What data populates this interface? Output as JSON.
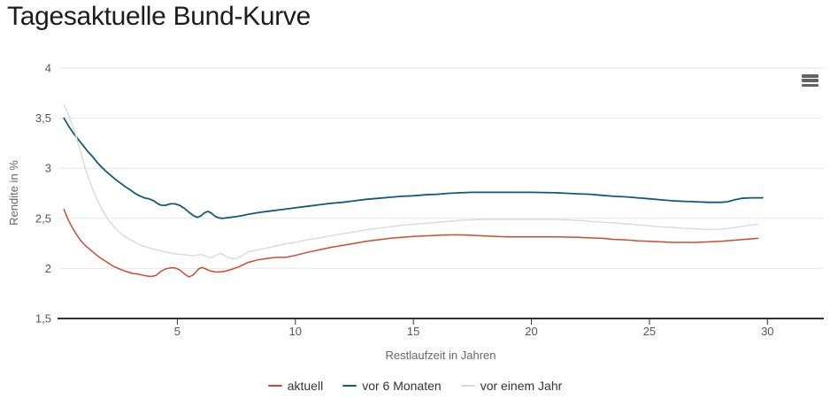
{
  "title": "Tagesaktuelle Bund-Kurve",
  "toolbar": {
    "menu_icon": "hamburger-menu"
  },
  "chart_data": {
    "type": "line",
    "title": "Tagesaktuelle Bund-Kurve",
    "xlabel": "Restlaufzeit in Jahren",
    "ylabel": "Rendite in %",
    "xlim": [
      0,
      32.35
    ],
    "ylim": [
      1.5,
      4
    ],
    "grid": "horizontal",
    "legend_position": "bottom",
    "colors": {
      "grid": "#e6e6e6",
      "axis_line": "#333333",
      "tick_text": "#555555",
      "axis_title_text": "#666666"
    },
    "xticks": [
      {
        "value": 5,
        "label": "5"
      },
      {
        "value": 10,
        "label": "10"
      },
      {
        "value": 15,
        "label": "15"
      },
      {
        "value": 20,
        "label": "20"
      },
      {
        "value": 25,
        "label": "25"
      },
      {
        "value": 30,
        "label": "30"
      }
    ],
    "yticks": [
      {
        "value": 4,
        "label": "4"
      },
      {
        "value": 3.5,
        "label": "3,5"
      },
      {
        "value": 3,
        "label": "3"
      },
      {
        "value": 2.5,
        "label": "2,5"
      },
      {
        "value": 2,
        "label": "2"
      },
      {
        "value": 1.5,
        "label": "1,5"
      }
    ],
    "series": [
      {
        "name": "aktuell",
        "color": "#cb4b34",
        "width": 1.5,
        "points": [
          [
            0.2,
            2.59
          ],
          [
            0.35,
            2.5
          ],
          [
            0.5,
            2.43
          ],
          [
            0.7,
            2.35
          ],
          [
            0.9,
            2.28
          ],
          [
            1.1,
            2.23
          ],
          [
            1.3,
            2.19
          ],
          [
            1.5,
            2.15
          ],
          [
            1.7,
            2.11
          ],
          [
            1.9,
            2.08
          ],
          [
            2.1,
            2.05
          ],
          [
            2.3,
            2.02
          ],
          [
            2.5,
            2.0
          ],
          [
            2.7,
            1.98
          ],
          [
            2.9,
            1.965
          ],
          [
            3.1,
            1.95
          ],
          [
            3.3,
            1.945
          ],
          [
            3.5,
            1.935
          ],
          [
            3.7,
            1.925
          ],
          [
            3.9,
            1.92
          ],
          [
            4.1,
            1.93
          ],
          [
            4.3,
            1.97
          ],
          [
            4.5,
            1.995
          ],
          [
            4.7,
            2.005
          ],
          [
            4.9,
            2.005
          ],
          [
            5.1,
            1.985
          ],
          [
            5.3,
            1.945
          ],
          [
            5.5,
            1.915
          ],
          [
            5.7,
            1.94
          ],
          [
            5.9,
            1.995
          ],
          [
            6.05,
            2.01
          ],
          [
            6.2,
            1.995
          ],
          [
            6.4,
            1.975
          ],
          [
            6.6,
            1.965
          ],
          [
            6.8,
            1.965
          ],
          [
            7.0,
            1.97
          ],
          [
            7.3,
            1.99
          ],
          [
            7.6,
            2.015
          ],
          [
            8.0,
            2.06
          ],
          [
            8.4,
            2.085
          ],
          [
            8.8,
            2.1
          ],
          [
            9.2,
            2.11
          ],
          [
            9.6,
            2.11
          ],
          [
            10,
            2.13
          ],
          [
            10.5,
            2.16
          ],
          [
            11,
            2.185
          ],
          [
            11.5,
            2.21
          ],
          [
            12,
            2.23
          ],
          [
            12.5,
            2.25
          ],
          [
            13,
            2.27
          ],
          [
            13.5,
            2.285
          ],
          [
            14,
            2.3
          ],
          [
            14.5,
            2.31
          ],
          [
            15,
            2.32
          ],
          [
            15.5,
            2.325
          ],
          [
            16,
            2.33
          ],
          [
            16.5,
            2.335
          ],
          [
            17,
            2.335
          ],
          [
            17.5,
            2.33
          ],
          [
            18,
            2.325
          ],
          [
            18.5,
            2.32
          ],
          [
            19,
            2.315
          ],
          [
            20,
            2.315
          ],
          [
            21,
            2.315
          ],
          [
            22,
            2.31
          ],
          [
            22.5,
            2.305
          ],
          [
            23,
            2.3
          ],
          [
            23.5,
            2.29
          ],
          [
            24,
            2.285
          ],
          [
            24.5,
            2.275
          ],
          [
            25,
            2.27
          ],
          [
            25.5,
            2.265
          ],
          [
            26,
            2.26
          ],
          [
            26.5,
            2.26
          ],
          [
            27,
            2.26
          ],
          [
            27.5,
            2.265
          ],
          [
            28,
            2.27
          ],
          [
            28.5,
            2.28
          ],
          [
            29,
            2.29
          ],
          [
            29.3,
            2.295
          ],
          [
            29.6,
            2.3
          ]
        ]
      },
      {
        "name": "vor 6 Monaten",
        "color": "#14597c",
        "width": 1.8,
        "points": [
          [
            0.2,
            3.5
          ],
          [
            0.4,
            3.42
          ],
          [
            0.6,
            3.35
          ],
          [
            0.8,
            3.29
          ],
          [
            1.0,
            3.23
          ],
          [
            1.2,
            3.17
          ],
          [
            1.4,
            3.12
          ],
          [
            1.6,
            3.06
          ],
          [
            1.8,
            3.01
          ],
          [
            2.0,
            2.965
          ],
          [
            2.2,
            2.925
          ],
          [
            2.4,
            2.885
          ],
          [
            2.6,
            2.85
          ],
          [
            2.8,
            2.815
          ],
          [
            3.0,
            2.785
          ],
          [
            3.2,
            2.75
          ],
          [
            3.4,
            2.725
          ],
          [
            3.6,
            2.705
          ],
          [
            3.8,
            2.695
          ],
          [
            4.0,
            2.675
          ],
          [
            4.15,
            2.65
          ],
          [
            4.3,
            2.632
          ],
          [
            4.5,
            2.63
          ],
          [
            4.7,
            2.645
          ],
          [
            4.9,
            2.645
          ],
          [
            5.1,
            2.63
          ],
          [
            5.3,
            2.6
          ],
          [
            5.5,
            2.56
          ],
          [
            5.7,
            2.525
          ],
          [
            5.85,
            2.51
          ],
          [
            6.0,
            2.525
          ],
          [
            6.15,
            2.555
          ],
          [
            6.3,
            2.57
          ],
          [
            6.45,
            2.55
          ],
          [
            6.6,
            2.52
          ],
          [
            6.75,
            2.505
          ],
          [
            6.9,
            2.5
          ],
          [
            7.1,
            2.505
          ],
          [
            7.4,
            2.515
          ],
          [
            7.7,
            2.525
          ],
          [
            8.0,
            2.54
          ],
          [
            8.5,
            2.56
          ],
          [
            9.0,
            2.575
          ],
          [
            9.5,
            2.59
          ],
          [
            10,
            2.605
          ],
          [
            10.5,
            2.62
          ],
          [
            11,
            2.635
          ],
          [
            11.5,
            2.65
          ],
          [
            12,
            2.66
          ],
          [
            12.5,
            2.675
          ],
          [
            13,
            2.69
          ],
          [
            13.5,
            2.7
          ],
          [
            14,
            2.71
          ],
          [
            14.5,
            2.72
          ],
          [
            15,
            2.725
          ],
          [
            15.5,
            2.735
          ],
          [
            16,
            2.74
          ],
          [
            16.5,
            2.75
          ],
          [
            17,
            2.755
          ],
          [
            17.5,
            2.76
          ],
          [
            18,
            2.76
          ],
          [
            19,
            2.76
          ],
          [
            20,
            2.76
          ],
          [
            21,
            2.755
          ],
          [
            21.5,
            2.75
          ],
          [
            22,
            2.745
          ],
          [
            22.5,
            2.74
          ],
          [
            23,
            2.73
          ],
          [
            23.5,
            2.72
          ],
          [
            24,
            2.715
          ],
          [
            24.5,
            2.705
          ],
          [
            25,
            2.695
          ],
          [
            25.5,
            2.685
          ],
          [
            26,
            2.675
          ],
          [
            26.5,
            2.67
          ],
          [
            27,
            2.665
          ],
          [
            27.5,
            2.66
          ],
          [
            28,
            2.66
          ],
          [
            28.3,
            2.665
          ],
          [
            28.6,
            2.685
          ],
          [
            28.9,
            2.7
          ],
          [
            29.3,
            2.705
          ],
          [
            29.8,
            2.705
          ]
        ]
      },
      {
        "name": "vor einem Jahr",
        "color": "#d7dadc",
        "width": 1.4,
        "points": [
          [
            0.2,
            3.63
          ],
          [
            0.35,
            3.56
          ],
          [
            0.5,
            3.47
          ],
          [
            0.65,
            3.37
          ],
          [
            0.8,
            3.25
          ],
          [
            0.95,
            3.13
          ],
          [
            1.1,
            3.0
          ],
          [
            1.3,
            2.86
          ],
          [
            1.5,
            2.74
          ],
          [
            1.7,
            2.64
          ],
          [
            1.9,
            2.55
          ],
          [
            2.1,
            2.48
          ],
          [
            2.3,
            2.42
          ],
          [
            2.5,
            2.37
          ],
          [
            2.7,
            2.33
          ],
          [
            2.9,
            2.3
          ],
          [
            3.1,
            2.275
          ],
          [
            3.3,
            2.25
          ],
          [
            3.6,
            2.22
          ],
          [
            3.9,
            2.2
          ],
          [
            4.2,
            2.18
          ],
          [
            4.5,
            2.165
          ],
          [
            4.8,
            2.15
          ],
          [
            5.1,
            2.14
          ],
          [
            5.4,
            2.135
          ],
          [
            5.7,
            2.125
          ],
          [
            6.0,
            2.14
          ],
          [
            6.2,
            2.125
          ],
          [
            6.4,
            2.105
          ],
          [
            6.6,
            2.125
          ],
          [
            6.8,
            2.15
          ],
          [
            7.0,
            2.13
          ],
          [
            7.2,
            2.105
          ],
          [
            7.45,
            2.095
          ],
          [
            7.7,
            2.12
          ],
          [
            8.0,
            2.165
          ],
          [
            8.5,
            2.19
          ],
          [
            9.0,
            2.215
          ],
          [
            9.5,
            2.24
          ],
          [
            10,
            2.26
          ],
          [
            10.5,
            2.285
          ],
          [
            11,
            2.305
          ],
          [
            11.5,
            2.325
          ],
          [
            12,
            2.345
          ],
          [
            12.5,
            2.365
          ],
          [
            13,
            2.385
          ],
          [
            13.5,
            2.4
          ],
          [
            14,
            2.415
          ],
          [
            14.5,
            2.43
          ],
          [
            15,
            2.44
          ],
          [
            15.5,
            2.45
          ],
          [
            16,
            2.46
          ],
          [
            16.5,
            2.47
          ],
          [
            17,
            2.48
          ],
          [
            17.5,
            2.485
          ],
          [
            18,
            2.49
          ],
          [
            19,
            2.49
          ],
          [
            20,
            2.49
          ],
          [
            21,
            2.49
          ],
          [
            21.5,
            2.485
          ],
          [
            22,
            2.48
          ],
          [
            22.5,
            2.47
          ],
          [
            23,
            2.46
          ],
          [
            23.5,
            2.455
          ],
          [
            24,
            2.445
          ],
          [
            24.5,
            2.435
          ],
          [
            25,
            2.425
          ],
          [
            25.5,
            2.415
          ],
          [
            26,
            2.41
          ],
          [
            26.5,
            2.4
          ],
          [
            27,
            2.395
          ],
          [
            27.5,
            2.39
          ],
          [
            28,
            2.39
          ],
          [
            28.4,
            2.4
          ],
          [
            28.8,
            2.415
          ],
          [
            29.2,
            2.43
          ],
          [
            29.6,
            2.44
          ]
        ]
      }
    ]
  }
}
